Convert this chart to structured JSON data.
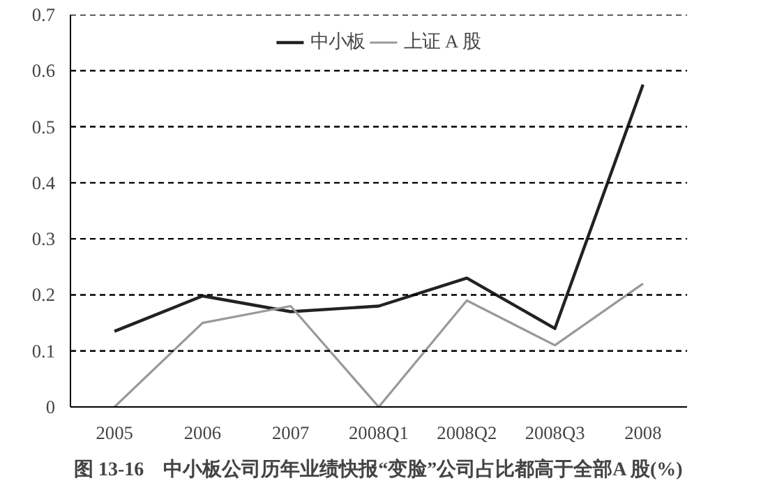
{
  "chart_data": {
    "type": "line",
    "title": "图 13-16　中小板公司历年业绩快报“变脸”公司占比都高于全部A 股(%)",
    "categories": [
      "2005",
      "2006",
      "2007",
      "2008Q1",
      "2008Q2",
      "2008Q3",
      "2008"
    ],
    "series": [
      {
        "name": "中小板",
        "color": "#222222",
        "values": [
          0.135,
          0.198,
          0.17,
          0.18,
          0.23,
          0.14,
          0.575
        ]
      },
      {
        "name": "上证 A 股",
        "color": "#999999",
        "values": [
          0.0,
          0.15,
          0.18,
          0.0,
          0.19,
          0.11,
          0.22
        ]
      }
    ],
    "ylim": [
      0,
      0.7
    ],
    "yticks": [
      0,
      {
        "value": 0.1,
        "label": "0.1"
      },
      {
        "value": 0.2,
        "label": "0.2"
      },
      {
        "value": 0.3,
        "label": "0.3"
      },
      {
        "value": 0.4,
        "label": "0.4"
      },
      {
        "value": 0.5,
        "label": "0.5"
      },
      {
        "value": 0.6,
        "label": "0.6"
      },
      {
        "value": 0.7,
        "label": "0.7"
      }
    ],
    "grid": "y",
    "legend": "top",
    "line_style": "solid",
    "marker": "none"
  }
}
